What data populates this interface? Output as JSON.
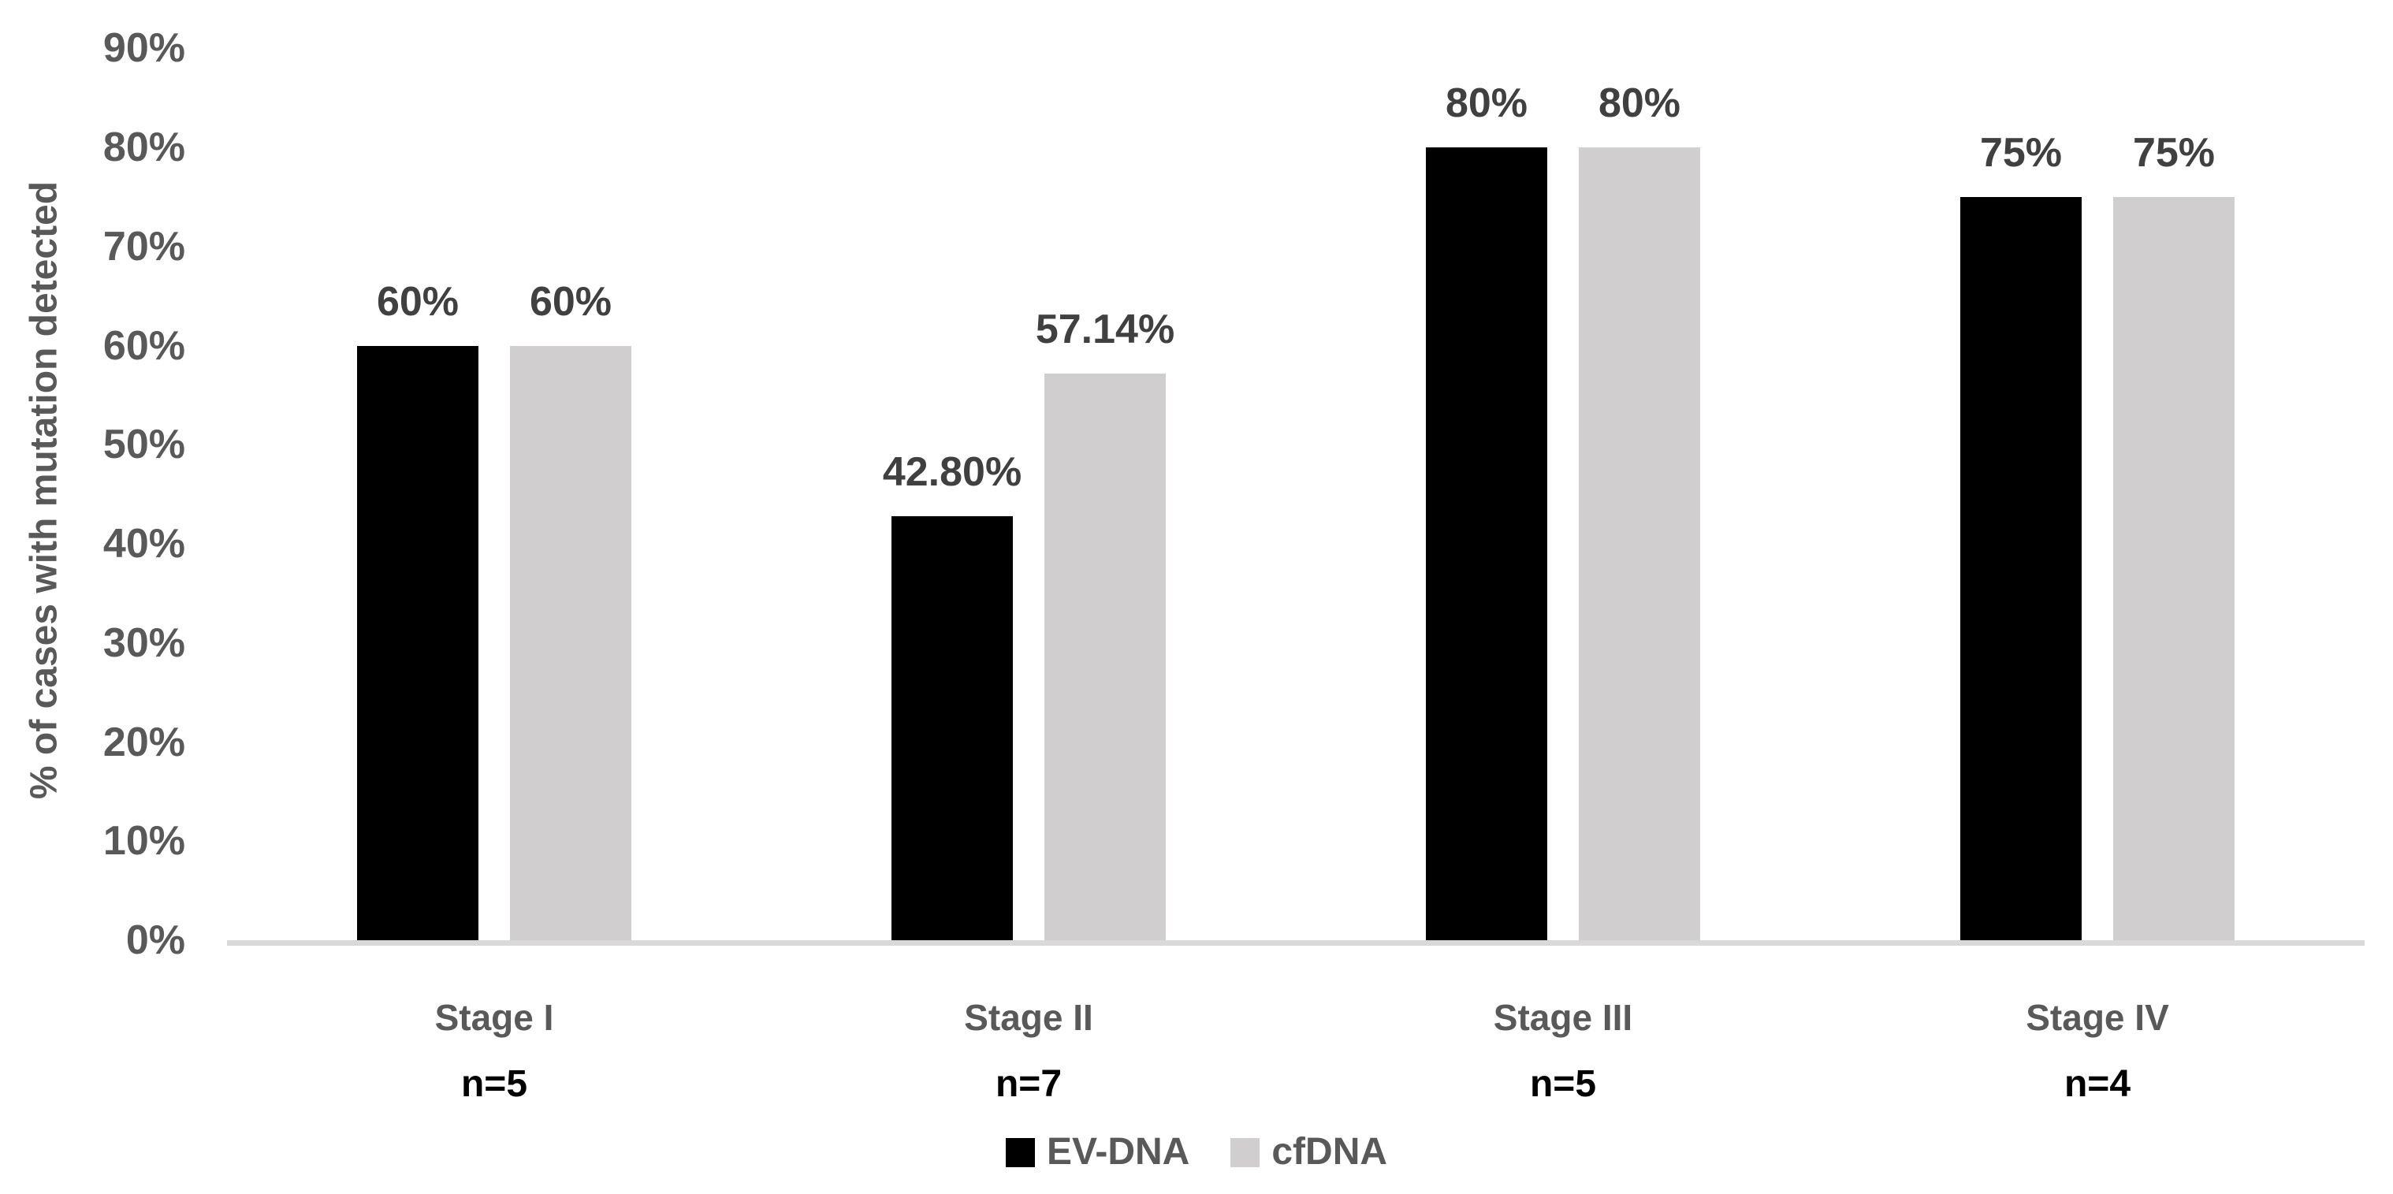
{
  "figure": {
    "background": "#ffffff",
    "axis_line_color": "#d9d9d9",
    "tick_label_color": "#595959",
    "value_label_color": "#404040",
    "category_label_color": "#595959",
    "sublabel_color": "#000000"
  },
  "chart_data": {
    "type": "bar",
    "title": "",
    "xlabel": "",
    "ylabel": "% of cases with mutation detected",
    "ylim": [
      0,
      90
    ],
    "yticks": [
      0,
      10,
      20,
      30,
      40,
      50,
      60,
      70,
      80,
      90
    ],
    "ytick_labels": [
      "0%",
      "10%",
      "20%",
      "30%",
      "40%",
      "50%",
      "60%",
      "70%",
      "80%",
      "90%"
    ],
    "grid": false,
    "legend_position": "bottom-center",
    "categories": [
      "Stage I",
      "Stage II",
      "Stage III",
      "Stage IV"
    ],
    "category_sublabels": [
      "n=5",
      "n=7",
      "n=5",
      "n=4"
    ],
    "series": [
      {
        "name": "EV-DNA",
        "color": "#000000",
        "values": [
          60,
          42.8,
          80,
          75
        ],
        "value_labels": [
          "60%",
          "42.80%",
          "80%",
          "75%"
        ]
      },
      {
        "name": "cfDNA",
        "color": "#d0cece",
        "values": [
          60,
          57.14,
          80,
          75
        ],
        "value_labels": [
          "60%",
          "57.14%",
          "80%",
          "75%"
        ]
      }
    ]
  }
}
